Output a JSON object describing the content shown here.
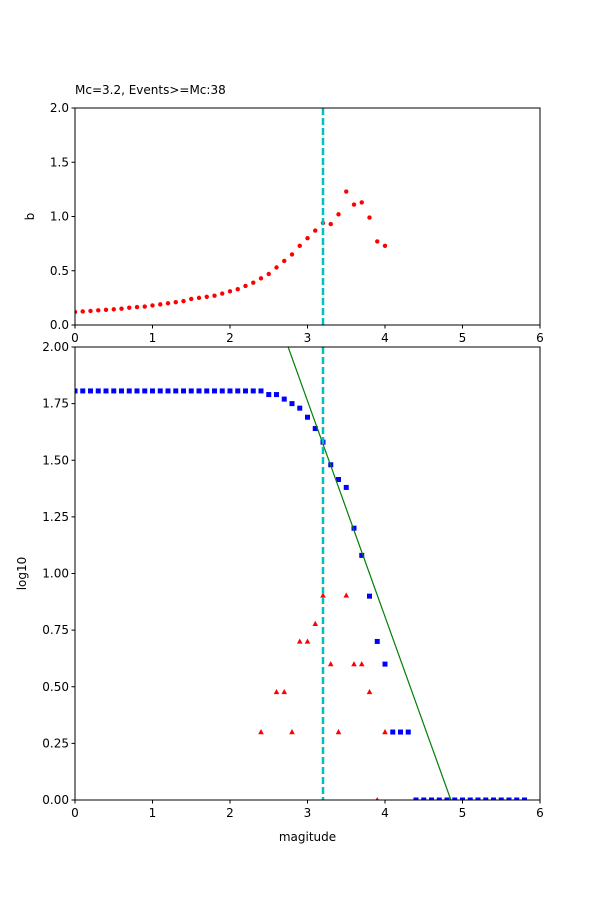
{
  "chart_data": [
    {
      "type": "scatter",
      "title": "Mc=3.2, Events>=Mc:38",
      "ylabel": "b",
      "xlim": [
        0,
        6
      ],
      "ylim": [
        0,
        2
      ],
      "xticks": [
        0,
        1,
        2,
        3,
        4,
        5,
        6
      ],
      "yticks": [
        {
          "value": 0,
          "label": "0.0"
        },
        0.5,
        {
          "value": 1,
          "label": "1.0"
        },
        1.5,
        {
          "value": 2,
          "label": "2.0"
        }
      ],
      "vline": 3.2,
      "vline_color": "#00bfbf",
      "series": [
        {
          "color": "#ff0000",
          "marker": "circle",
          "x": [
            0,
            0.1,
            0.2,
            0.3,
            0.4,
            0.5,
            0.6,
            0.7,
            0.8,
            0.9,
            1.0,
            1.1,
            1.2,
            1.3,
            1.4,
            1.5,
            1.6,
            1.7,
            1.8,
            1.9,
            2.0,
            2.1,
            2.2,
            2.3,
            2.4,
            2.5,
            2.6,
            2.7,
            2.8,
            2.9,
            3.0,
            3.1,
            3.2,
            3.3,
            3.4,
            3.5,
            3.6,
            3.7,
            3.8,
            3.9,
            4.0
          ],
          "values": [
            0.12,
            0.125,
            0.13,
            0.135,
            0.14,
            0.145,
            0.15,
            0.16,
            0.165,
            0.17,
            0.18,
            0.19,
            0.2,
            0.21,
            0.22,
            0.24,
            0.25,
            0.26,
            0.27,
            0.29,
            0.31,
            0.33,
            0.36,
            0.39,
            0.43,
            0.47,
            0.53,
            0.59,
            0.65,
            0.73,
            0.8,
            0.87,
            0.94,
            0.93,
            1.02,
            1.23,
            1.11,
            1.13,
            0.99,
            0.77,
            0.73
          ]
        }
      ]
    },
    {
      "type": "scatter",
      "xlabel": "magitude",
      "ylabel": "log10",
      "xlim": [
        0,
        6
      ],
      "ylim": [
        0,
        2
      ],
      "xticks": [
        0,
        1,
        2,
        3,
        4,
        5,
        6
      ],
      "yticks": [
        {
          "value": 0,
          "label": "0.00"
        },
        0.25,
        {
          "value": 0.5,
          "label": "0.50"
        },
        0.75,
        {
          "value": 1,
          "label": "1.00"
        },
        1.25,
        {
          "value": 1.5,
          "label": "1.50"
        },
        1.75,
        {
          "value": 2,
          "label": "2.00"
        }
      ],
      "vline": 3.2,
      "vline_color": "#00bfbf",
      "series": [
        {
          "color": "#0000ff",
          "marker": "square",
          "x": [
            0,
            0.1,
            0.2,
            0.3,
            0.4,
            0.5,
            0.6,
            0.7,
            0.8,
            0.9,
            1.0,
            1.1,
            1.2,
            1.3,
            1.4,
            1.5,
            1.6,
            1.7,
            1.8,
            1.9,
            2.0,
            2.1,
            2.2,
            2.3,
            2.4,
            2.5,
            2.6,
            2.7,
            2.8,
            2.9,
            3.0,
            3.1,
            3.2,
            3.3,
            3.4,
            3.5,
            3.6,
            3.7,
            3.8,
            3.9,
            4.0,
            4.1,
            4.2,
            4.3,
            4.4,
            4.5,
            4.6,
            4.7,
            4.8,
            4.9,
            5.0,
            5.1,
            5.2,
            5.3,
            5.4,
            5.5,
            5.6,
            5.7,
            5.8
          ],
          "values": [
            1.806,
            1.806,
            1.806,
            1.806,
            1.806,
            1.806,
            1.806,
            1.806,
            1.806,
            1.806,
            1.806,
            1.806,
            1.806,
            1.806,
            1.806,
            1.806,
            1.806,
            1.806,
            1.806,
            1.806,
            1.806,
            1.806,
            1.806,
            1.806,
            1.806,
            1.79,
            1.79,
            1.77,
            1.75,
            1.73,
            1.69,
            1.64,
            1.58,
            1.48,
            1.415,
            1.38,
            1.2,
            1.08,
            0.9,
            0.7,
            0.6,
            0.3,
            0.3,
            0.3,
            0,
            0,
            0,
            0,
            0,
            0,
            0,
            0,
            0,
            0,
            0,
            0,
            0,
            0,
            0
          ]
        },
        {
          "color": "#ff0000",
          "marker": "triangle",
          "x": [
            2.4,
            2.6,
            2.7,
            2.8,
            2.9,
            3.0,
            3.1,
            3.2,
            3.3,
            3.4,
            3.5,
            3.6,
            3.7,
            3.8,
            3.9,
            4.0
          ],
          "values": [
            0.3,
            0.477,
            0.477,
            0.3,
            0.7,
            0.7,
            0.778,
            0.903,
            0.6,
            0.3,
            0.903,
            0.6,
            0.6,
            0.477,
            0,
            0.3
          ]
        },
        {
          "color": "#008000",
          "marker": "line",
          "x": [
            2.75,
            4.85
          ],
          "values": [
            2,
            0
          ]
        }
      ]
    }
  ]
}
